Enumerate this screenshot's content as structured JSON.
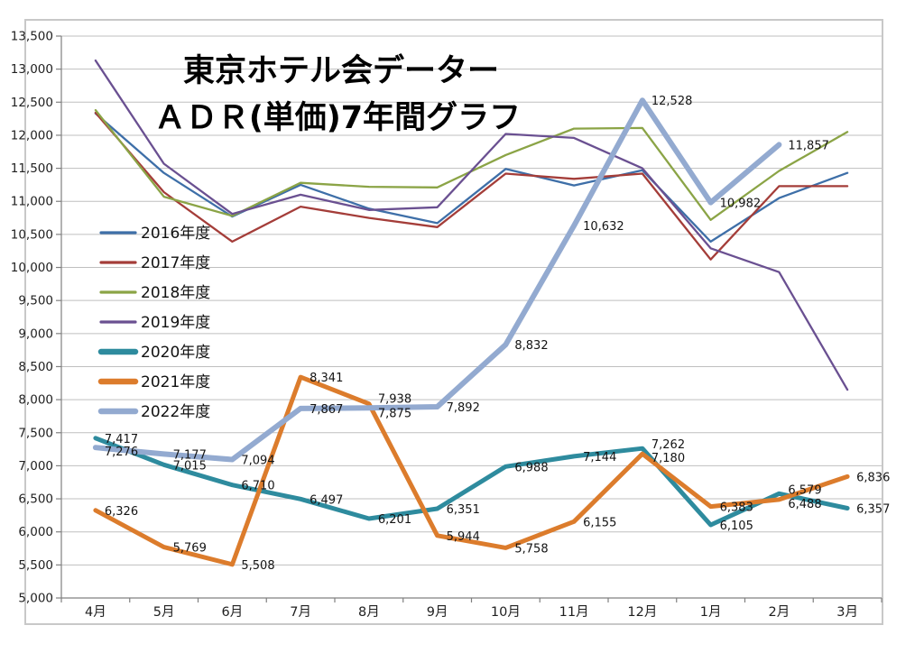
{
  "title": {
    "line1": "東京ホテル会データー",
    "line2": "ＡＤＲ(単価)7年間グラフ"
  },
  "chart_data": {
    "type": "line",
    "categories": [
      "4月",
      "5月",
      "6月",
      "7月",
      "8月",
      "9月",
      "10月",
      "11月",
      "12月",
      "1月",
      "2月",
      "3月"
    ],
    "y_axis": {
      "min": 5000,
      "max": 13500,
      "step": 500
    },
    "grid": true,
    "legend_position": "inside-left",
    "axis_color": "#808080",
    "grid_color": "#bfbfbf",
    "border_color": "#c8c8c8",
    "series": [
      {
        "name": "2016年度",
        "color": "#3E6FA8",
        "width": 2.3,
        "show_labels": false,
        "values": [
          12330,
          11430,
          10770,
          11250,
          10890,
          10670,
          11490,
          11240,
          11470,
          10390,
          11050,
          11430
        ]
      },
      {
        "name": "2017年度",
        "color": "#A43D39",
        "width": 2.3,
        "show_labels": false,
        "values": [
          12340,
          11140,
          10390,
          10920,
          10750,
          10610,
          11420,
          11340,
          11420,
          10120,
          11230,
          11230
        ]
      },
      {
        "name": "2018年度",
        "color": "#8BA446",
        "width": 2.3,
        "show_labels": false,
        "values": [
          12380,
          11070,
          10780,
          11280,
          11220,
          11210,
          11700,
          12100,
          12110,
          10720,
          11460,
          12050
        ]
      },
      {
        "name": "2019年度",
        "color": "#6A5091",
        "width": 2.3,
        "show_labels": false,
        "values": [
          13130,
          11570,
          10810,
          11100,
          10870,
          10910,
          12020,
          11960,
          11500,
          10290,
          9930,
          8150
        ]
      },
      {
        "name": "2020年度",
        "color": "#2E8B9E",
        "width": 5,
        "show_labels": true,
        "values": [
          7417,
          7015,
          6710,
          6497,
          6201,
          6351,
          6988,
          7144,
          7262,
          6105,
          6579,
          6357
        ],
        "label_dy": {
          "8": 0,
          "10": 0
        }
      },
      {
        "name": "2021年度",
        "color": "#DC7C2C",
        "width": 5,
        "show_labels": true,
        "values": [
          6326,
          5769,
          5508,
          8341,
          7938,
          5944,
          5758,
          6155,
          7180,
          6383,
          6488,
          6836
        ],
        "label_dy": {
          "4": -1,
          "8": 9,
          "10": 9
        }
      },
      {
        "name": "2022年度",
        "color": "#93AAD0",
        "width": 6,
        "show_labels": true,
        "values": [
          7276,
          7177,
          7094,
          7867,
          7875,
          7892,
          8832,
          10632,
          12528,
          10982,
          11857,
          null
        ],
        "label_dy": {
          "0": 9,
          "4": 10
        }
      }
    ]
  },
  "layout_text": {
    "note": ""
  }
}
